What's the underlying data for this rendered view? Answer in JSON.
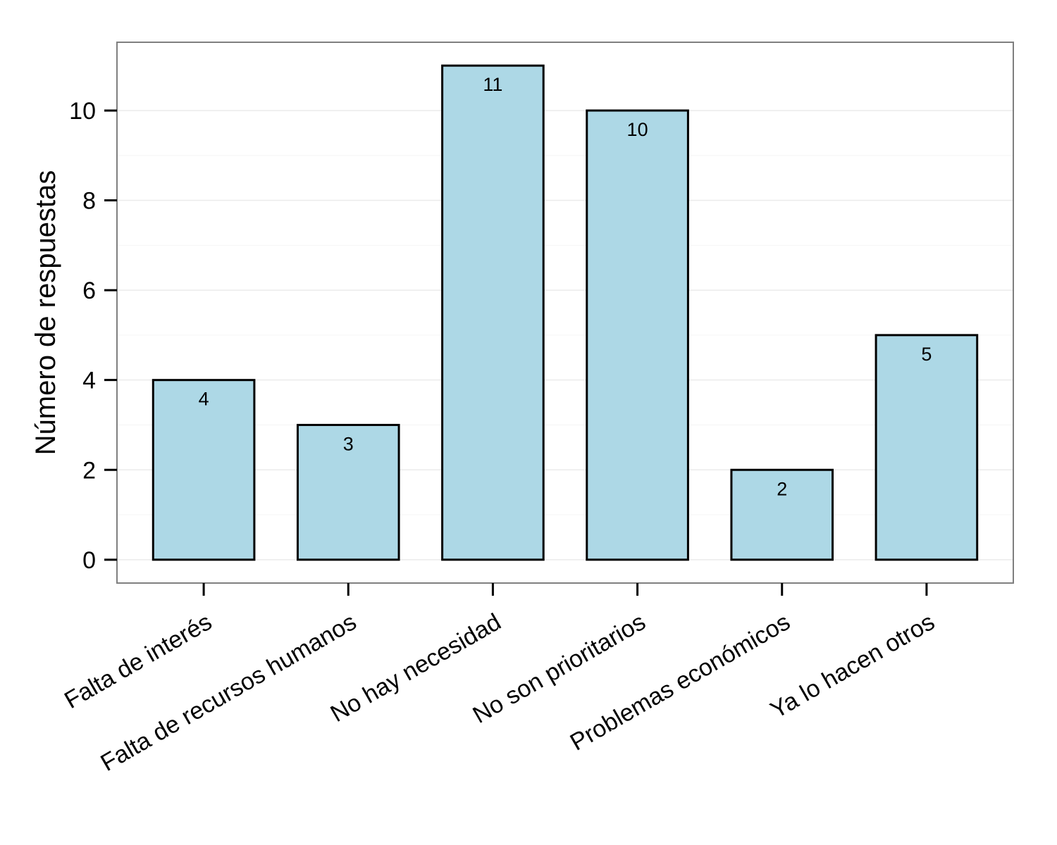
{
  "chart_data": {
    "type": "bar",
    "title": "",
    "xlabel": "",
    "ylabel": "Número de respuestas",
    "categories": [
      "Falta de interés",
      "Falta de recursos humanos",
      "No hay necesidad",
      "No son prioritarios",
      "Problemas económicos",
      "Ya lo hacen otros"
    ],
    "values": [
      4,
      3,
      11,
      10,
      2,
      5
    ],
    "data_labels": [
      "4",
      "3",
      "11",
      "10",
      "2",
      "5"
    ],
    "ylim": [
      -0.52,
      11.52
    ],
    "yticks": [
      0,
      2,
      4,
      6,
      8,
      10
    ],
    "ytick_labels": [
      "0",
      "2",
      "4",
      "6",
      "8",
      "10"
    ],
    "grid": true,
    "legend": "none",
    "colors": {
      "bar_fill": "#add8e6",
      "bar_stroke": "#000000",
      "grid_major": "#ebebeb",
      "grid_minor": "#f5f5f5",
      "panel_border": "#7f7f7f"
    }
  }
}
